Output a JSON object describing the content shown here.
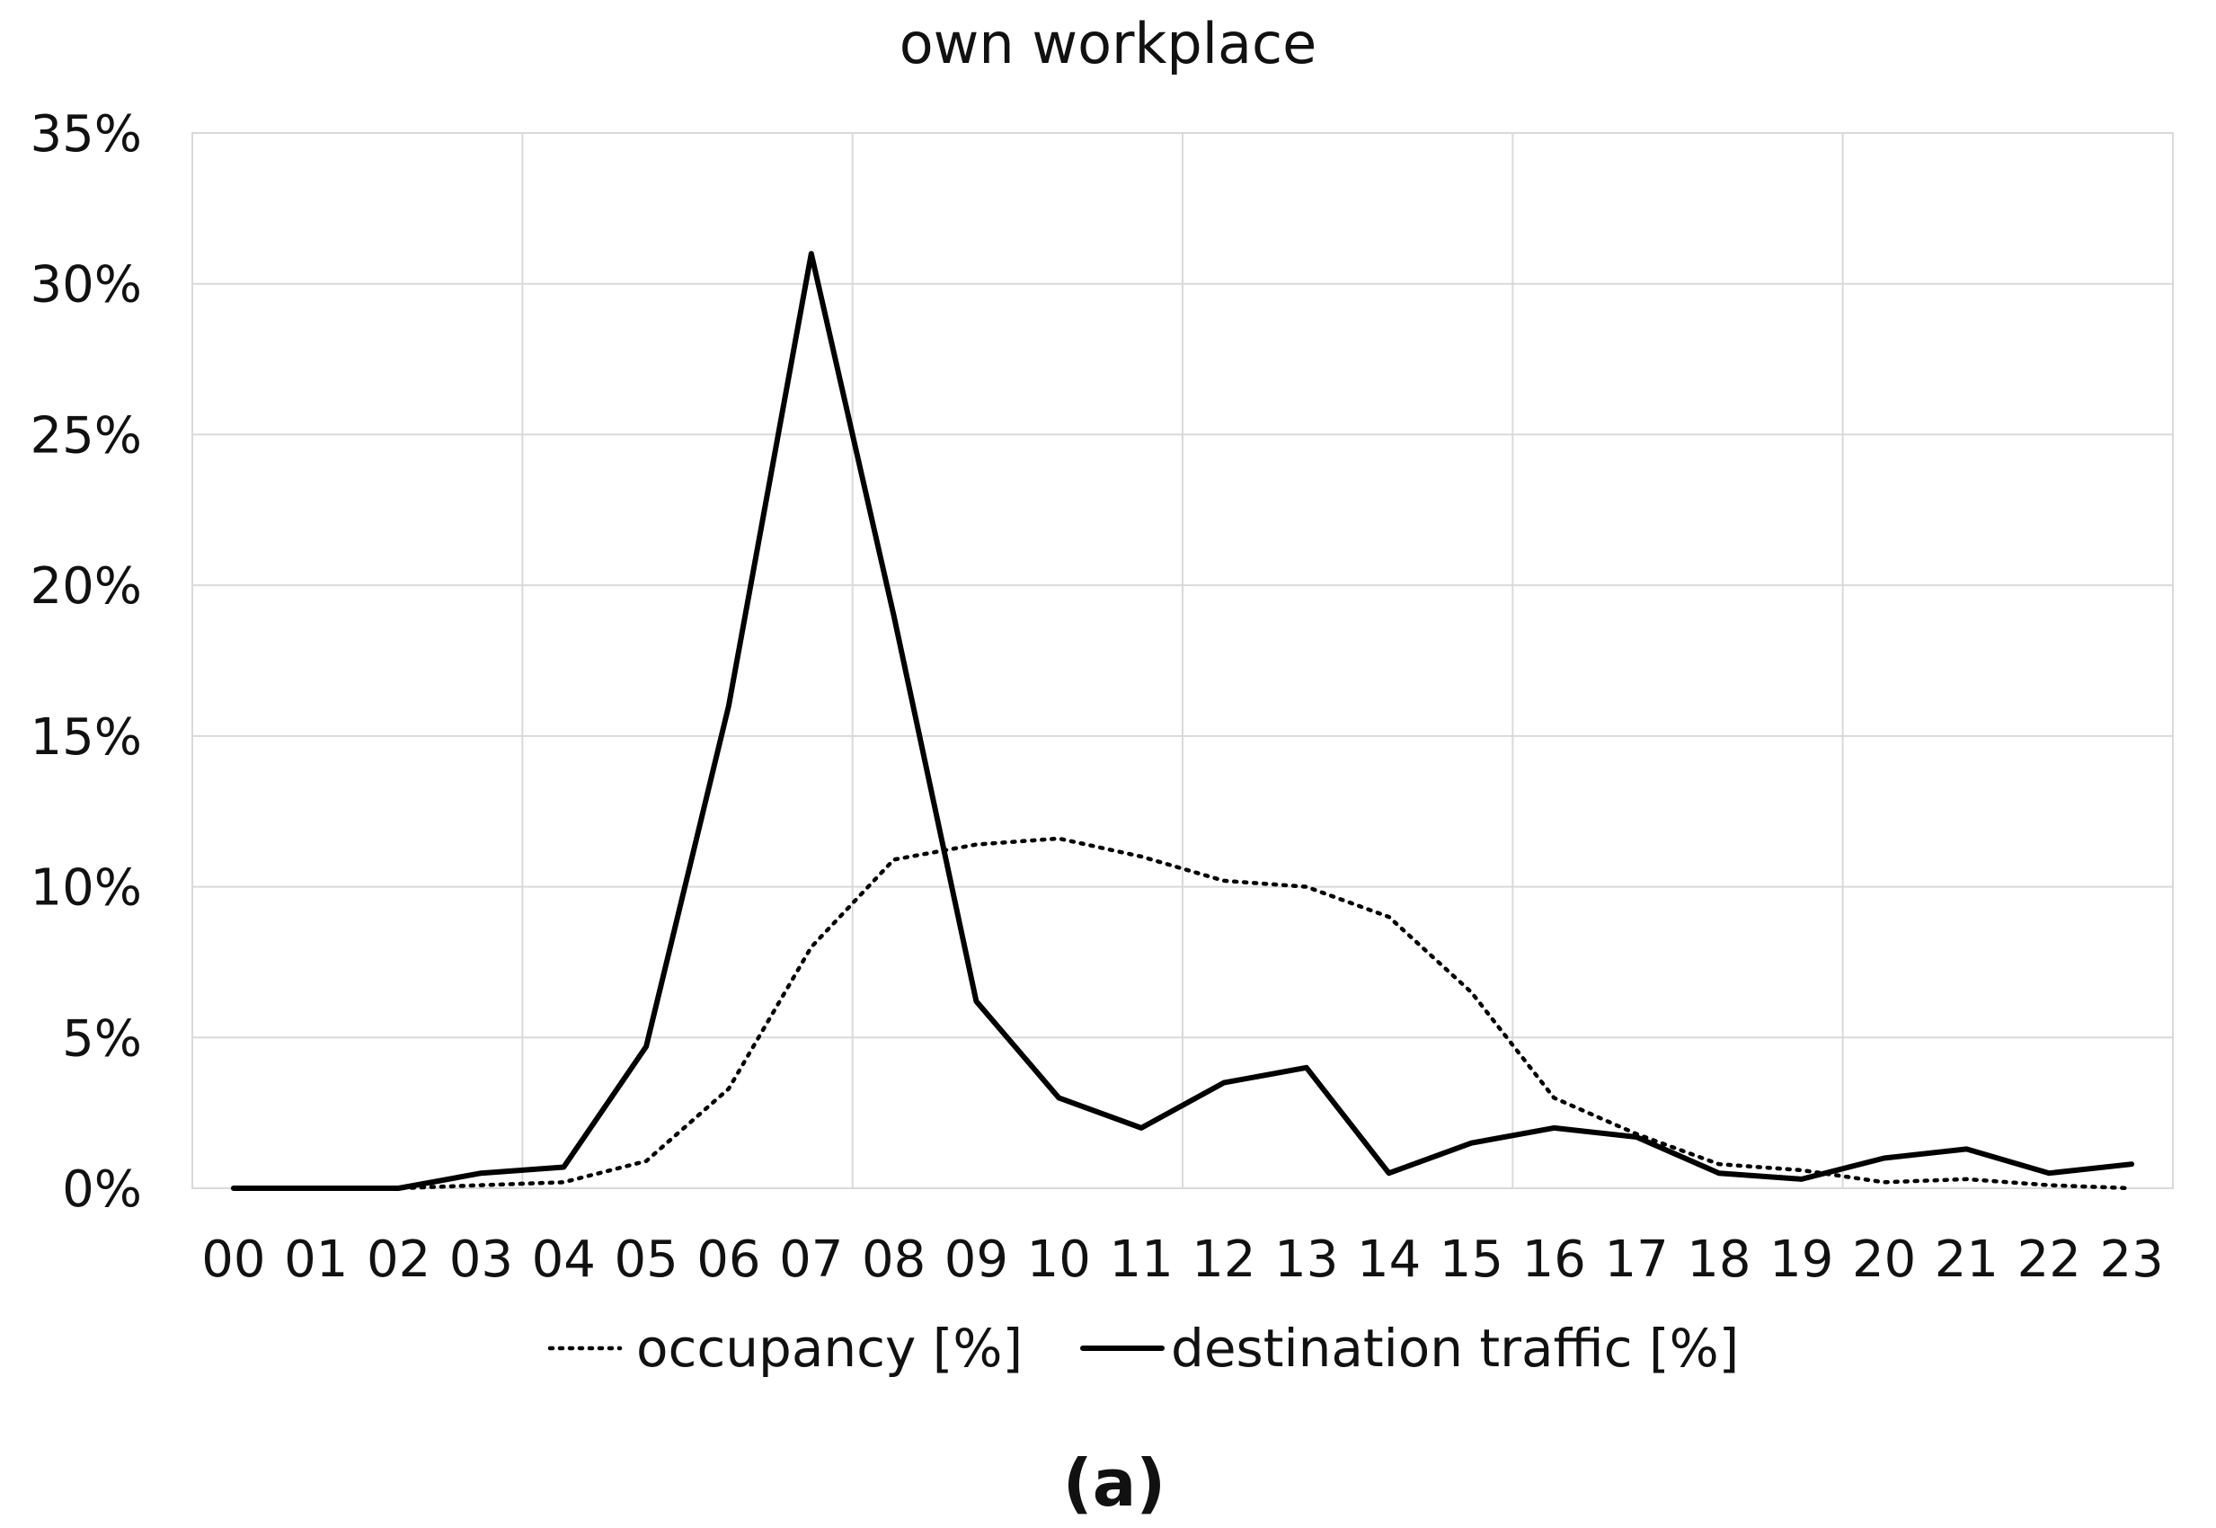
{
  "caption": "(a)",
  "chart_data": {
    "type": "line",
    "title": "own workplace",
    "xlabel": "",
    "ylabel": "",
    "categories": [
      "00",
      "01",
      "02",
      "03",
      "04",
      "05",
      "06",
      "07",
      "08",
      "09",
      "10",
      "11",
      "12",
      "13",
      "14",
      "15",
      "16",
      "17",
      "18",
      "19",
      "20",
      "21",
      "22",
      "23"
    ],
    "y_tick_labels": [
      "0%",
      "5%",
      "10%",
      "15%",
      "20%",
      "25%",
      "30%",
      "35%"
    ],
    "ylim": [
      0,
      35
    ],
    "y_unit": "%",
    "grid": true,
    "legend_position": "bottom",
    "series": [
      {
        "name": "occupancy [%]",
        "style": "dotted",
        "color": "#000000",
        "values": [
          0,
          0,
          0,
          0.1,
          0.2,
          0.9,
          3.3,
          8.0,
          10.9,
          11.4,
          11.6,
          11.0,
          10.2,
          10.0,
          9.0,
          6.5,
          3.0,
          1.8,
          0.8,
          0.6,
          0.2,
          0.3,
          0.1,
          0
        ]
      },
      {
        "name": "destination traffic [%]",
        "style": "solid",
        "color": "#000000",
        "values": [
          0,
          0,
          0,
          0.5,
          0.7,
          4.7,
          16.0,
          31.0,
          19.0,
          6.2,
          3.0,
          2.0,
          3.5,
          4.0,
          0.5,
          1.5,
          2.0,
          1.7,
          0.5,
          0.3,
          1.0,
          1.3,
          0.5,
          0.8
        ]
      }
    ]
  }
}
